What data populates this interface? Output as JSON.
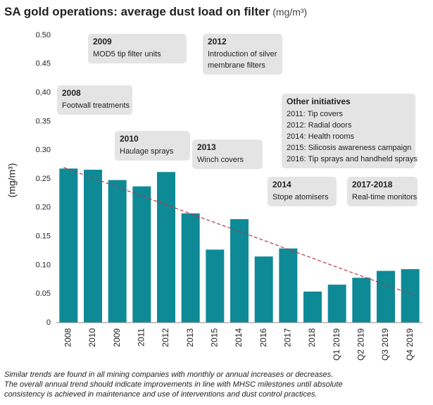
{
  "chart_data": {
    "type": "bar",
    "title": "SA gold operations: average dust load on filter",
    "title_unit": "(mg/m³)",
    "y_label": "(mg/m³)",
    "categories": [
      "2008",
      "2010",
      "2009",
      "2011",
      "2012",
      "2013",
      "2015",
      "2014",
      "2016",
      "2017",
      "2018",
      "Q1 2019",
      "Q2 2019",
      "Q3 2019",
      "Q4 2019"
    ],
    "values": [
      0.268,
      0.266,
      0.248,
      0.237,
      0.262,
      0.19,
      0.127,
      0.18,
      0.115,
      0.129,
      0.054,
      0.066,
      0.078,
      0.09,
      0.093
    ],
    "color": "#0e8a96",
    "ylim": [
      0,
      0.5
    ],
    "yticks": [
      0,
      0.05,
      {
        "value": 0.1,
        "label": "0.10"
      },
      0.15,
      {
        "value": 0.2,
        "label": "0.20"
      },
      0.25,
      {
        "value": 0.3,
        "label": "0.30"
      },
      0.35,
      {
        "value": 0.4,
        "label": "0,40"
      },
      0.45,
      {
        "value": 0.5,
        "label": "0.50"
      }
    ],
    "trendline": {
      "start": 0.27,
      "end": 0.047,
      "color": "#b5364a"
    },
    "annotations": [
      {
        "title": "2009",
        "lines": [
          "MOD5 tip filter units"
        ]
      },
      {
        "title": "2012",
        "lines": [
          "Introduction of silver",
          "membrane filters"
        ]
      },
      {
        "title": "2008",
        "lines": [
          "Footwall treatments"
        ]
      },
      {
        "title": "Other initiatives",
        "lines": [
          "2011: Tip covers",
          "2012: Radial doors",
          "2014: Health rooms",
          "2015: Silicosis awareness campaign",
          "2016: Tip sprays and handheld sprays"
        ]
      },
      {
        "title": "2010",
        "lines": [
          "Haulage sprays"
        ]
      },
      {
        "title": "2013",
        "lines": [
          "Winch covers"
        ]
      },
      {
        "title": "2014",
        "lines": [
          "Stope atomisers"
        ]
      },
      {
        "title": "2017-2018",
        "lines": [
          "Real-time monitors"
        ]
      }
    ],
    "footnote": [
      "Similar trends are found in all mining companies with monthly or annual increases or decreases.",
      "The overall annual trend should indicate improvements in line with MHSC milestones until absolute",
      "consistency is achieved in maintenance and use of interventions and dust control practices."
    ]
  }
}
